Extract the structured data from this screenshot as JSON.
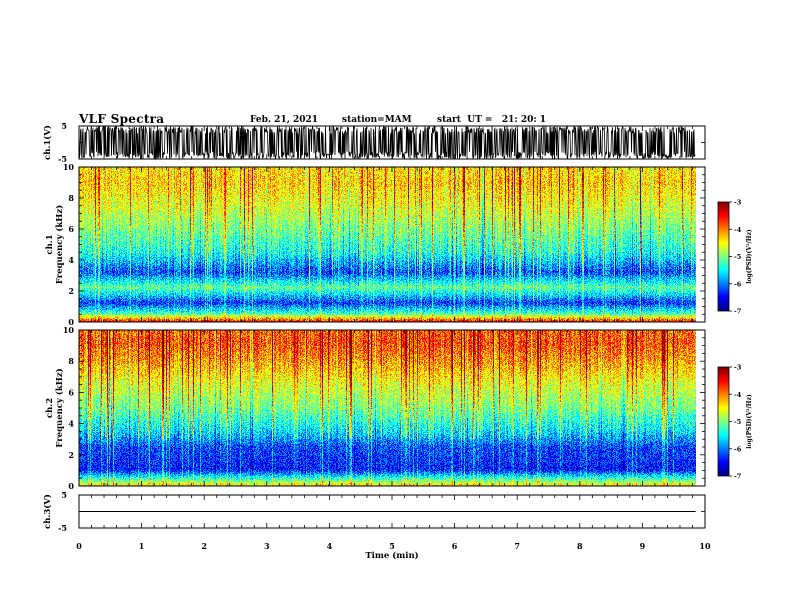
{
  "header": {
    "title": "VLF Spectra",
    "date": "Feb. 21, 2021",
    "station": "station=MAM",
    "start_ut": "start  UT =   21: 20: 1"
  },
  "chart_data": [
    {
      "type": "line",
      "panel": "ch1-waveform",
      "ylabel": "ch.1(V)",
      "ylim": [
        -5,
        5
      ],
      "yticks": [
        "5",
        "-5"
      ],
      "xlim": [
        0,
        10
      ],
      "description_of_trace": "dense oscillating waveform spanning most of the range",
      "color": "#000000"
    },
    {
      "type": "heatmap",
      "panel": "ch1-spectrogram",
      "ylabel": "ch.1\nFrequency (kHz)",
      "ylim": [
        0,
        10
      ],
      "yticks": [
        "0",
        "2",
        "4",
        "6",
        "8",
        "10"
      ],
      "xlim": [
        0,
        10
      ],
      "data_extent_x": [
        0,
        9.85
      ],
      "colorbar": {
        "label": "log(PSD)(V²/Hz)",
        "range": [
          -7,
          -3
        ],
        "ticks": [
          "-3",
          "-4",
          "-5",
          "-6",
          "-7"
        ]
      },
      "profile_by_frequency_khz": [
        {
          "f": 0.0,
          "level": -3.6
        },
        {
          "f": 0.5,
          "level": -5.2
        },
        {
          "f": 1.2,
          "level": -6.3
        },
        {
          "f": 2.2,
          "level": -5.1
        },
        {
          "f": 3.2,
          "level": -6.2
        },
        {
          "f": 4.5,
          "level": -5.4
        },
        {
          "f": 6.0,
          "level": -5.0
        },
        {
          "f": 7.5,
          "level": -4.6
        },
        {
          "f": 9.0,
          "level": -4.3
        },
        {
          "f": 10.0,
          "level": -4.4
        }
      ]
    },
    {
      "type": "heatmap",
      "panel": "ch2-spectrogram",
      "ylabel": "ch.2\nFrequency (kHz)",
      "ylim": [
        0,
        10
      ],
      "yticks": [
        "0",
        "2",
        "4",
        "6",
        "8",
        "10"
      ],
      "xlim": [
        0,
        10
      ],
      "data_extent_x": [
        0,
        9.85
      ],
      "colorbar": {
        "label": "log(PSD)(V²/Hz)",
        "range": [
          -7,
          -3
        ],
        "ticks": [
          "-3",
          "-4",
          "-5",
          "-6",
          "-7"
        ]
      },
      "profile_by_frequency_khz": [
        {
          "f": 0.0,
          "level": -4.4
        },
        {
          "f": 1.0,
          "level": -6.4
        },
        {
          "f": 2.5,
          "level": -6.2
        },
        {
          "f": 3.5,
          "level": -5.6
        },
        {
          "f": 5.0,
          "level": -5.0
        },
        {
          "f": 6.5,
          "level": -4.6
        },
        {
          "f": 8.0,
          "level": -4.1
        },
        {
          "f": 9.2,
          "level": -3.8
        },
        {
          "f": 10.0,
          "level": -3.9
        }
      ]
    },
    {
      "type": "line",
      "panel": "ch3-waveform",
      "ylabel": "ch.3(V)",
      "ylim": [
        -5,
        5
      ],
      "yticks": [
        "5",
        "-5"
      ],
      "xlim": [
        0,
        10
      ],
      "series": [
        {
          "x": [
            0,
            9.85
          ],
          "values": [
            0,
            0
          ]
        }
      ],
      "xlabel": "Time (min)",
      "xticks": [
        "0",
        "1",
        "2",
        "3",
        "4",
        "5",
        "6",
        "7",
        "8",
        "9",
        "10"
      ]
    }
  ],
  "colors": {
    "jet": [
      "#00007f",
      "#0000ff",
      "#007fff",
      "#00ffff",
      "#7fff7f",
      "#ffff00",
      "#ff7f00",
      "#ff0000",
      "#7f0000"
    ],
    "axis": "#000000",
    "background": "#ffffff"
  }
}
